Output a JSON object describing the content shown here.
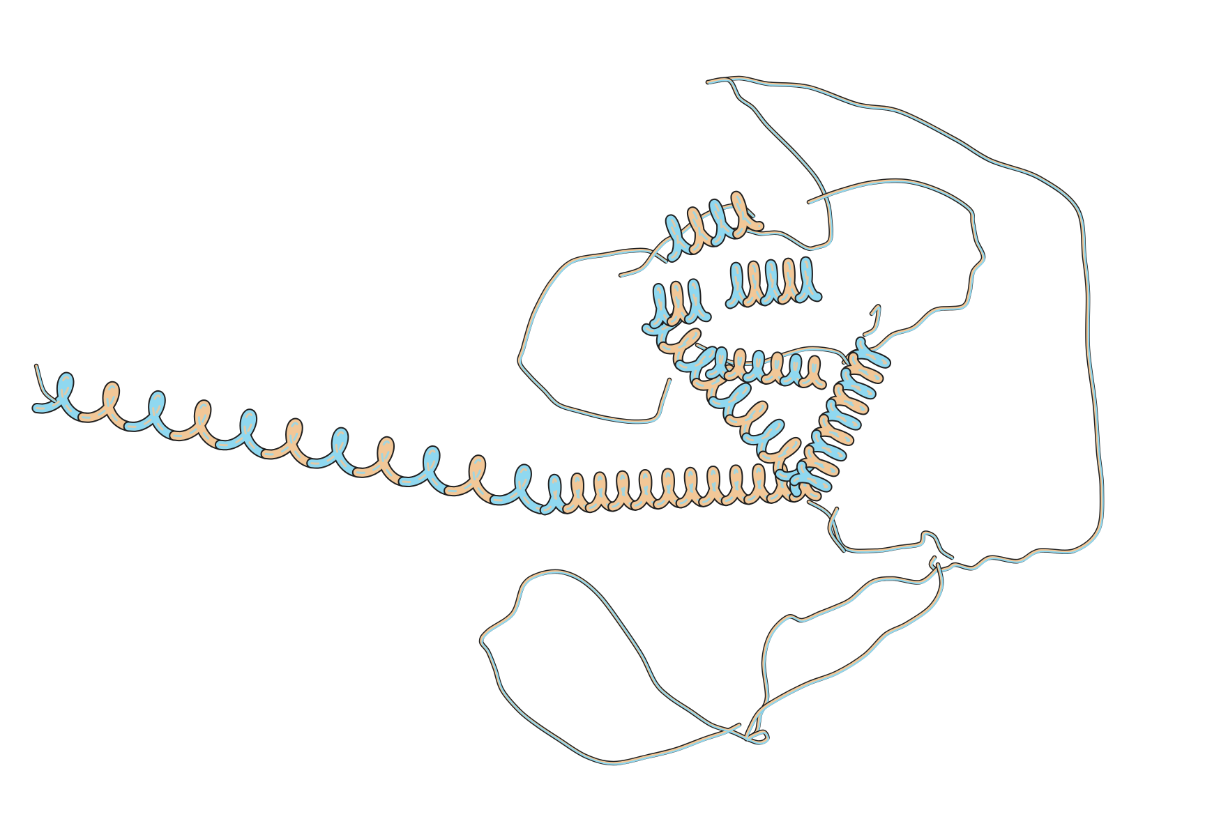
{
  "scene": {
    "background_color": "#ffffff",
    "colors": {
      "model_a": "#f2c797",
      "model_b": "#8fd8f0",
      "outline": "#1f1f1f"
    },
    "icons": [
      "protein-ribbon-icon"
    ]
  }
}
